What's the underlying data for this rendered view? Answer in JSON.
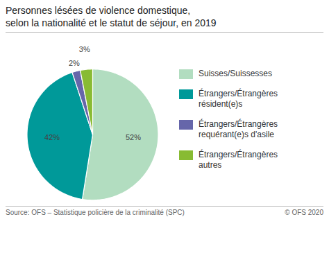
{
  "chart_data": {
    "type": "pie",
    "title": "Personnes lésées de violence domestique,",
    "subtitle": "selon la nationalité et le statut de séjour, en 2019",
    "categories": [
      "Suisses/Suissesses",
      "Étrangers/Étrangères\nrésident(e)s",
      "Étrangers/Étrangères\nrequérant(e)s d'asile",
      "Étrangers/Étrangères\nautres"
    ],
    "values": [
      52,
      42,
      2,
      3
    ],
    "value_labels": [
      "52%",
      "42%",
      "2%",
      "3%"
    ],
    "colors": [
      "#b2ddc0",
      "#009999",
      "#6666aa",
      "#88bb33"
    ],
    "data_labels": true,
    "legend": "right",
    "annotations": [
      "Source: OFS – Statistique policière de la criminalité (SPC)",
      "© OFS 2020"
    ]
  }
}
